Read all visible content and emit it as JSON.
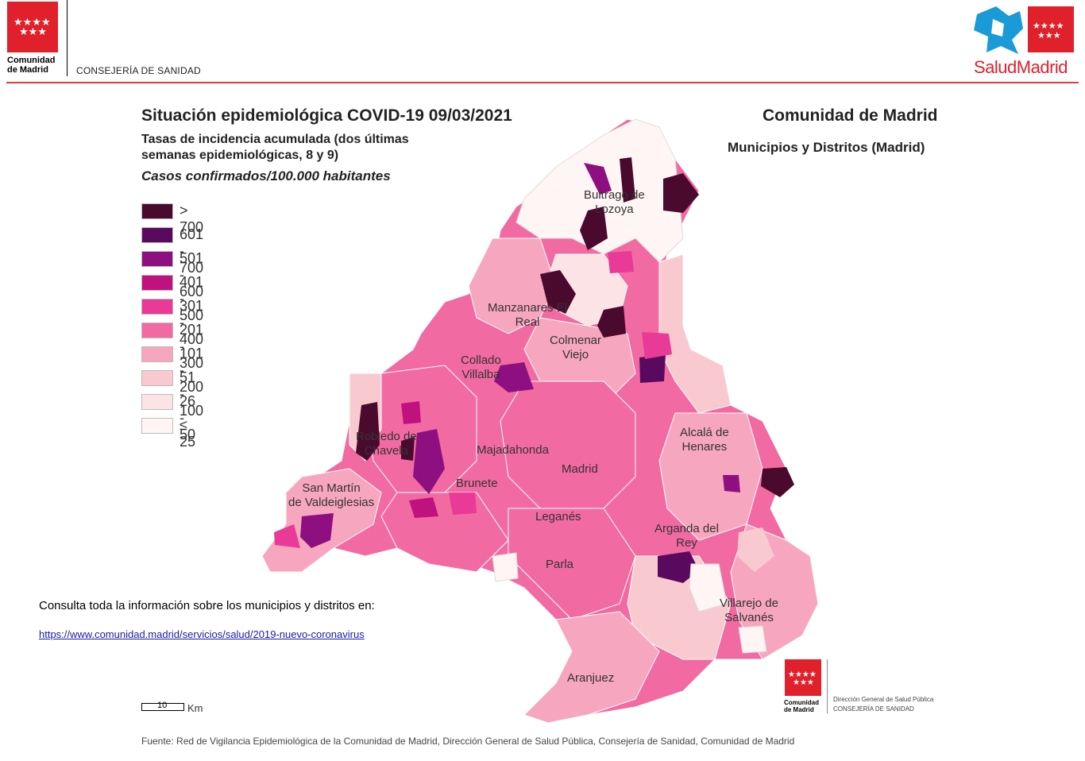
{
  "header": {
    "org_name_line1": "Comunidad",
    "org_name_line2": "de Madrid",
    "department": "CONSEJERÍA DE SANIDAD",
    "brand": "SaludMadrid"
  },
  "map": {
    "title": "Situación epidemiológica COVID-19  09/03/2021",
    "subtitle": "Tasas de incidencia acumulada (dos últimas semanas epidemiológicas, 8 y 9)",
    "units": "Casos confirmados/100.000 habitantes",
    "region": "Comunidad de Madrid",
    "region_sub": "Municipios y Distritos (Madrid)",
    "legend": [
      {
        "label": "> 700",
        "color": "#4a0a2e"
      },
      {
        "label": "601 - 700",
        "color": "#5a0a5e"
      },
      {
        "label": "501 - 600",
        "color": "#8e1080"
      },
      {
        "label": "401 - 500",
        "color": "#c0127e"
      },
      {
        "label": "301 - 400",
        "color": "#e83a96"
      },
      {
        "label": "201 - 300",
        "color": "#f26aa2"
      },
      {
        "label": "101 - 200",
        "color": "#f7a6bf"
      },
      {
        "label": "51 - 100",
        "color": "#f9c9d0"
      },
      {
        "label": "26 - 50",
        "color": "#fbe3e6"
      },
      {
        "label": "≤ 25",
        "color": "#fff5f5"
      }
    ],
    "places": [
      {
        "id": "buitrago",
        "label": "Buitrago de Lozoya"
      },
      {
        "id": "manzanares",
        "label": "Manzanares El Real"
      },
      {
        "id": "colmenar",
        "label": "Colmenar Viejo"
      },
      {
        "id": "collado",
        "label": "Collado Villalba"
      },
      {
        "id": "alcala",
        "label": "Alcalá de Henares"
      },
      {
        "id": "robledo",
        "label": "Robledo de Chavela"
      },
      {
        "id": "majadahonda",
        "label": "Majadahonda"
      },
      {
        "id": "madrid",
        "label": "Madrid"
      },
      {
        "id": "sanmartin",
        "label": "San Martín de Valdeiglesias"
      },
      {
        "id": "brunete",
        "label": "Brunete"
      },
      {
        "id": "leganes",
        "label": "Leganés"
      },
      {
        "id": "arganda",
        "label": "Arganda del Rey"
      },
      {
        "id": "parla",
        "label": "Parla"
      },
      {
        "id": "villarejo",
        "label": "Villarejo de Salvanés"
      },
      {
        "id": "aranjuez",
        "label": "Aranjuez"
      }
    ],
    "scale": {
      "value": "10",
      "unit": "Km"
    }
  },
  "info_text": "Consulta toda la información sobre los municipios y distritos en:",
  "link_text": "https://www.comunidad.madrid/servicios/salud/2019-nuevo-coronavirus",
  "source": "Fuente: Red de Vigilancia Epidemiológica de la Comunidad de Madrid, Dirección General de Salud Pública, Consejería de Sanidad, Comunidad de Madrid",
  "footer_logo": {
    "org_line1": "Comunidad",
    "org_line2": "de Madrid",
    "line1": "Dirección General de Salud Pública",
    "line2": "CONSEJERÍA DE SANIDAD"
  }
}
